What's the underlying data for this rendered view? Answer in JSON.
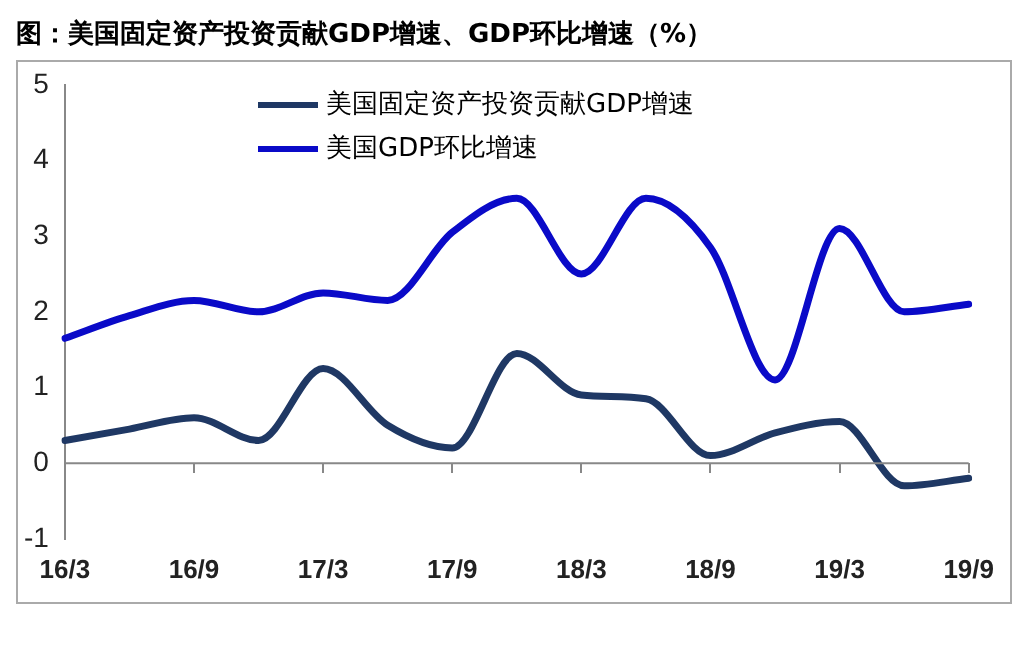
{
  "chart_data": {
    "type": "line",
    "title": "图：美国固定资产投资贡献GDP增速、GDP环比增速（%）",
    "categories": [
      "16/3",
      null,
      "16/9",
      null,
      "17/3",
      null,
      "17/9",
      null,
      "18/3",
      null,
      "18/9",
      null,
      "19/3",
      null,
      "19/9"
    ],
    "series": [
      {
        "name": "美国固定资产投资贡献GDP增速",
        "color": "#1f3864",
        "values": [
          0.3,
          0.45,
          0.6,
          0.3,
          1.25,
          0.5,
          0.2,
          1.45,
          0.9,
          0.85,
          0.1,
          0.4,
          0.55,
          -0.3,
          -0.2
        ]
      },
      {
        "name": "美国GDP环比增速",
        "color": "#0a0ac8",
        "values": [
          1.65,
          1.95,
          2.15,
          2.0,
          2.25,
          2.15,
          3.05,
          3.5,
          2.5,
          3.5,
          2.85,
          1.1,
          3.1,
          2.0,
          2.1
        ]
      }
    ],
    "ylim": [
      -1,
      5
    ],
    "yticks": [
      -1,
      0,
      1,
      2,
      3,
      4,
      5
    ],
    "grid": false,
    "ref_lines": [
      {
        "axis": "y",
        "value": 0,
        "color": "#888888"
      }
    ],
    "legend": "top",
    "marker": "none",
    "line_style": "solid"
  }
}
